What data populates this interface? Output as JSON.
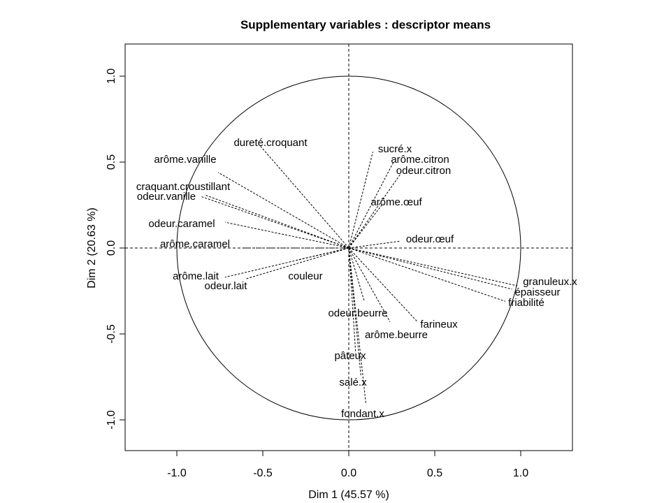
{
  "chart_data": {
    "type": "scatter",
    "title": "Supplementary variables : descriptor means",
    "xlabel": "Dim 1 (45.57 %)",
    "ylabel": "Dim 2 (20.63 %)",
    "xlim": [
      -1.3,
      1.3
    ],
    "ylim": [
      -1.18,
      1.18
    ],
    "xticks": [
      -1.0,
      -0.5,
      0.0,
      0.5,
      1.0
    ],
    "yticks": [
      -1.0,
      -0.5,
      0.0,
      0.5,
      1.0
    ],
    "xtick_labels": [
      "-1.0",
      "-0.5",
      "0.0",
      "0.5",
      "1.0"
    ],
    "ytick_labels": [
      "-1.0",
      "-0.5",
      "0.0",
      "0.5",
      "1.0"
    ],
    "unit_circle": true,
    "reference_lines": true,
    "grid": false,
    "points": [
      {
        "label": "dureté.croquant",
        "x": -0.52,
        "y": 0.6
      },
      {
        "label": "arôme.vanille",
        "x": -0.76,
        "y": 0.44
      },
      {
        "label": "craquant.croustillant",
        "x": -0.84,
        "y": 0.31
      },
      {
        "label": "odeur.vanille",
        "x": -0.86,
        "y": 0.3
      },
      {
        "label": "odeur.caramel",
        "x": -0.72,
        "y": 0.15
      },
      {
        "label": "arôme.caramel",
        "x": -0.62,
        "y": 0.0
      },
      {
        "label": "arôme.lait",
        "x": -0.72,
        "y": -0.17
      },
      {
        "label": "odeur.lait",
        "x": -0.6,
        "y": -0.18
      },
      {
        "label": "couleur",
        "x": -0.3,
        "y": -0.07
      },
      {
        "label": "sucré.x",
        "x": 0.14,
        "y": 0.56
      },
      {
        "label": "arôme.citron",
        "x": 0.26,
        "y": 0.5
      },
      {
        "label": "odeur.citron",
        "x": 0.3,
        "y": 0.43
      },
      {
        "label": "arôme.œuf",
        "x": 0.2,
        "y": 0.26
      },
      {
        "label": "odeur.œuf",
        "x": 0.3,
        "y": 0.04
      },
      {
        "label": "granuleux.x",
        "x": 0.98,
        "y": -0.22
      },
      {
        "label": "épaisseur",
        "x": 0.95,
        "y": -0.24
      },
      {
        "label": "friabilité",
        "x": 0.91,
        "y": -0.31
      },
      {
        "label": "odeur.beurre",
        "x": 0.09,
        "y": -0.31
      },
      {
        "label": "farineux",
        "x": 0.4,
        "y": -0.43
      },
      {
        "label": "arôme.beurre",
        "x": 0.24,
        "y": -0.43
      },
      {
        "label": "pâteux",
        "x": 0.04,
        "y": -0.61
      },
      {
        "label": "salé.x",
        "x": 0.07,
        "y": -0.74
      },
      {
        "label": "fondant.x",
        "x": 0.1,
        "y": -0.91
      }
    ]
  }
}
